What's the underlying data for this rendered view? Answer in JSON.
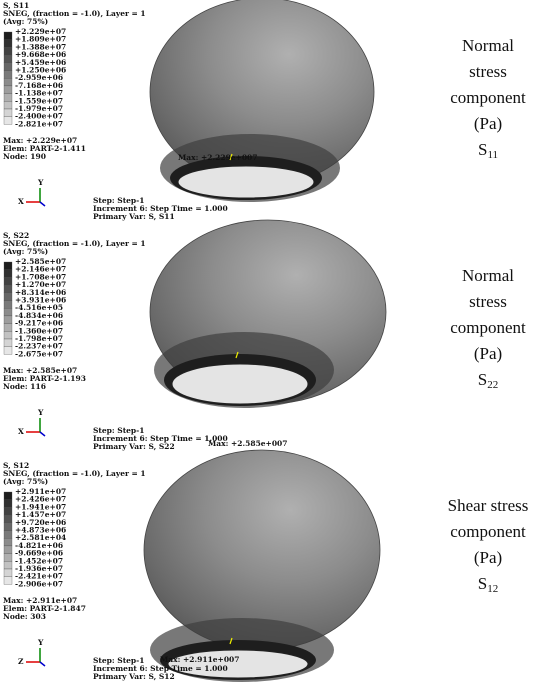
{
  "panels": [
    {
      "header": [
        "S, S11",
        "SNEG, (fraction = -1.0), Layer = 1",
        "(Avg: 75%)"
      ],
      "legend": [
        "+2.229e+07",
        "+1.809e+07",
        "+1.388e+07",
        "+9.668e+06",
        "+5.459e+06",
        "+1.250e+06",
        "-2.959e+06",
        "-7.168e+06",
        "-1.138e+07",
        "-1.559e+07",
        "-1.979e+07",
        "-2.400e+07",
        "-2.821e+07"
      ],
      "max_info": [
        "Max: +2.229e+07",
        "Elem: PART-2-1.411",
        "Node: 190"
      ],
      "max_label": "Max: +2.229e+007",
      "axes": [
        "X",
        "Y"
      ],
      "step": [
        "Step: Step-1",
        "Increment    6: Step Time =    1.000",
        "Primary Var: S, S11"
      ],
      "caption": [
        "Normal",
        "stress",
        "component",
        "(Pa)"
      ],
      "symbol": "S",
      "subscript": "11"
    },
    {
      "header": [
        "S, S22",
        "SNEG, (fraction = -1.0), Layer = 1",
        "(Avg: 75%)"
      ],
      "legend": [
        "+2.585e+07",
        "+2.146e+07",
        "+1.708e+07",
        "+1.270e+07",
        "+8.314e+06",
        "+3.931e+06",
        "-4.516e+05",
        "-4.834e+06",
        "-9.217e+06",
        "-1.360e+07",
        "-1.798e+07",
        "-2.237e+07",
        "-2.675e+07"
      ],
      "max_info": [
        "Max: +2.585e+07",
        "Elem: PART-2-1.193",
        "Node: 116"
      ],
      "max_label": "Max: +2.585e+007",
      "axes": [
        "X",
        "Y"
      ],
      "step": [
        "Step: Step-1",
        "Increment    6: Step Time =    1.000",
        "Primary Var: S, S22"
      ],
      "caption": [
        "Normal",
        "stress",
        "component",
        "(Pa)"
      ],
      "symbol": "S",
      "subscript": "22"
    },
    {
      "header": [
        "S, S12",
        "SNEG, (fraction = -1.0), Layer = 1",
        "(Avg: 75%)"
      ],
      "legend": [
        "+2.911e+07",
        "+2.426e+07",
        "+1.941e+07",
        "+1.457e+07",
        "+9.720e+06",
        "+4.873e+06",
        "+2.581e+04",
        "-4.821e+06",
        "-9.669e+06",
        "-1.452e+07",
        "-1.936e+07",
        "-2.421e+07",
        "-2.906e+07"
      ],
      "max_info": [
        "Max: +2.911e+07",
        "Elem: PART-2-1.847",
        "Node: 303"
      ],
      "max_label": "Max: +2.911e+007",
      "axes": [
        "Z",
        "Y"
      ],
      "step": [
        "Step: Step-1",
        "Increment    6: Step Time =    1.000",
        "Primary Var: S, S12"
      ],
      "caption": [
        "Shear stress",
        "component",
        "(Pa)"
      ],
      "symbol": "S",
      "subscript": "12"
    }
  ]
}
